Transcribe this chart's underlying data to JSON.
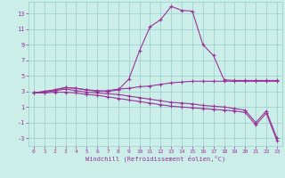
{
  "xlabel": "Windchill (Refroidissement éolien,°C)",
  "bg_color": "#cceee8",
  "line_color": "#993399",
  "grid_color": "#99cccc",
  "xlim": [
    -0.5,
    23.5
  ],
  "ylim": [
    -4,
    14.5
  ],
  "xticks": [
    0,
    1,
    2,
    3,
    4,
    5,
    6,
    7,
    8,
    9,
    10,
    11,
    12,
    13,
    14,
    15,
    16,
    17,
    18,
    19,
    20,
    21,
    22,
    23
  ],
  "yticks": [
    -3,
    -1,
    1,
    3,
    5,
    7,
    9,
    11,
    13
  ],
  "series1_y": [
    2.8,
    3.0,
    3.2,
    3.5,
    3.4,
    3.2,
    3.1,
    3.0,
    3.2,
    4.6,
    8.2,
    11.3,
    12.2,
    13.9,
    13.4,
    13.3,
    9.0,
    7.6,
    4.5,
    4.4,
    4.4,
    4.4,
    4.4,
    4.4
  ],
  "series2_y": [
    2.8,
    3.0,
    3.2,
    3.5,
    3.4,
    3.2,
    3.0,
    3.1,
    3.3,
    3.4,
    3.6,
    3.7,
    3.9,
    4.1,
    4.2,
    4.3,
    4.3,
    4.3,
    4.3,
    4.3,
    4.3,
    4.3,
    4.3,
    4.3
  ],
  "series3_y": [
    2.8,
    2.9,
    3.1,
    3.3,
    3.1,
    2.9,
    2.8,
    2.7,
    2.6,
    2.4,
    2.2,
    2.0,
    1.8,
    1.6,
    1.5,
    1.4,
    1.2,
    1.1,
    1.0,
    0.8,
    0.6,
    -1.0,
    0.5,
    -3.0
  ],
  "series4_y": [
    2.8,
    2.8,
    2.9,
    2.9,
    2.8,
    2.6,
    2.5,
    2.3,
    2.1,
    1.9,
    1.7,
    1.5,
    1.3,
    1.1,
    1.0,
    0.9,
    0.8,
    0.7,
    0.6,
    0.5,
    0.3,
    -1.3,
    0.2,
    -3.3
  ]
}
